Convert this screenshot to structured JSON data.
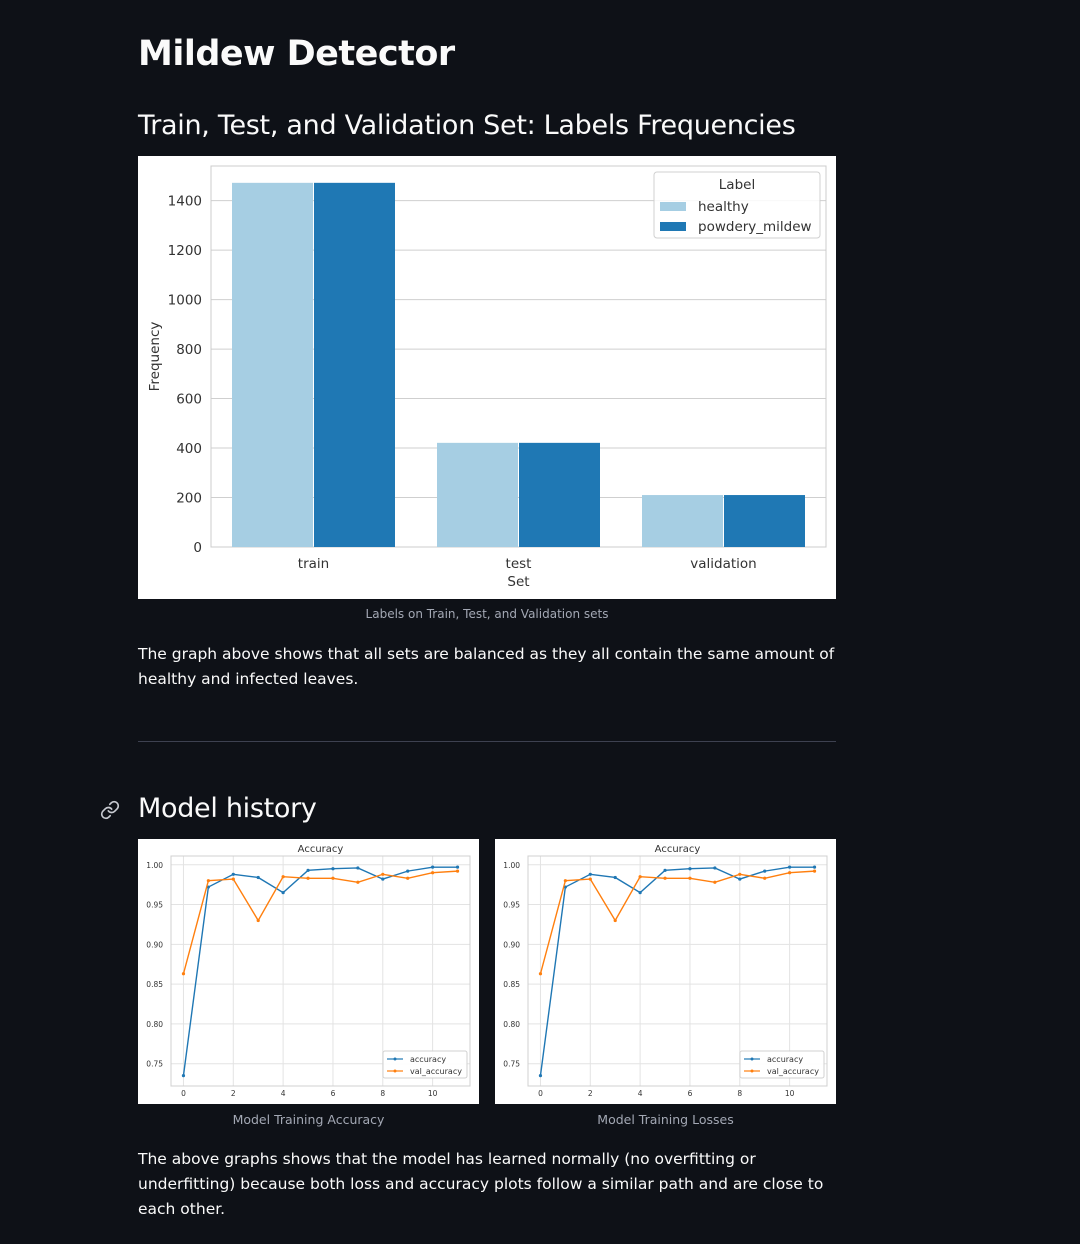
{
  "page": {
    "title": "Mildew Detector"
  },
  "section1": {
    "heading": "Train, Test, and Validation Set: Labels Frequencies",
    "caption": "Labels on Train, Test, and Validation sets",
    "paragraph": "The graph above shows that all sets are balanced as they all contain the same amount of healthy and infected leaves."
  },
  "section2": {
    "heading": "Model history",
    "caption_left": "Model Training Accuracy",
    "caption_right": "Model Training Losses",
    "paragraph": "The above graphs shows that the model has learned normally (no overfitting or underfitting) because both loss and accuracy plots follow a similar path and are close to each other."
  },
  "icons": {
    "heading_anchor": "link-icon"
  },
  "chart_data": [
    {
      "type": "bar",
      "categories": [
        "train",
        "test",
        "validation"
      ],
      "series": [
        {
          "name": "healthy",
          "values": [
            1472,
            421,
            210
          ],
          "color": "#a6cee3"
        },
        {
          "name": "powdery_mildew",
          "values": [
            1472,
            421,
            210
          ],
          "color": "#1f78b4"
        }
      ],
      "xlabel": "Set",
      "ylabel": "Frequency",
      "ylim": [
        0,
        1540
      ],
      "yticks": [
        0,
        200,
        400,
        600,
        800,
        1000,
        1200,
        1400
      ],
      "legend_title": "Label",
      "legend_position": "top-right",
      "grid": true
    },
    {
      "type": "line",
      "title": "Accuracy",
      "x": [
        0,
        1,
        2,
        3,
        4,
        5,
        6,
        7,
        8,
        9,
        10,
        11
      ],
      "series": [
        {
          "name": "accuracy",
          "values": [
            0.735,
            0.972,
            0.988,
            0.984,
            0.965,
            0.993,
            0.995,
            0.996,
            0.982,
            0.992,
            0.997,
            0.997
          ],
          "color": "#1f77b4"
        },
        {
          "name": "val_accuracy",
          "values": [
            0.863,
            0.98,
            0.982,
            0.93,
            0.985,
            0.983,
            0.983,
            0.978,
            0.988,
            0.983,
            0.99,
            0.992
          ],
          "color": "#ff7f0e"
        }
      ],
      "xticks": [
        0,
        2,
        4,
        6,
        8,
        10
      ],
      "yticks": [
        0.75,
        0.8,
        0.85,
        0.9,
        0.95,
        1.0
      ],
      "ytick_labels": [
        "0.75",
        "0.80",
        "0.85",
        "0.90",
        "0.95",
        "1.00"
      ],
      "xlim": [
        -0.5,
        11.5
      ],
      "ylim": [
        0.722,
        1.011
      ],
      "legend_position": "lower-right",
      "grid": true
    },
    {
      "type": "line",
      "title": "Accuracy",
      "x": [
        0,
        1,
        2,
        3,
        4,
        5,
        6,
        7,
        8,
        9,
        10,
        11
      ],
      "series": [
        {
          "name": "accuracy",
          "values": [
            0.735,
            0.972,
            0.988,
            0.984,
            0.965,
            0.993,
            0.995,
            0.996,
            0.982,
            0.992,
            0.997,
            0.997
          ],
          "color": "#1f77b4"
        },
        {
          "name": "val_accuracy",
          "values": [
            0.863,
            0.98,
            0.982,
            0.93,
            0.985,
            0.983,
            0.983,
            0.978,
            0.988,
            0.983,
            0.99,
            0.992
          ],
          "color": "#ff7f0e"
        }
      ],
      "xticks": [
        0,
        2,
        4,
        6,
        8,
        10
      ],
      "yticks": [
        0.75,
        0.8,
        0.85,
        0.9,
        0.95,
        1.0
      ],
      "ytick_labels": [
        "0.75",
        "0.80",
        "0.85",
        "0.90",
        "0.95",
        "1.00"
      ],
      "xlim": [
        -0.5,
        11.5
      ],
      "ylim": [
        0.722,
        1.011
      ],
      "legend_position": "lower-right",
      "grid": true
    }
  ]
}
